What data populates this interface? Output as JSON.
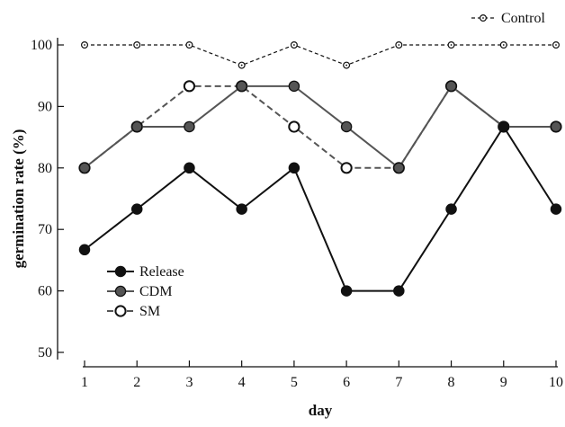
{
  "chart_data": {
    "type": "line",
    "title": "",
    "xlabel": "day",
    "ylabel": "germination rate (%)",
    "x": [
      1,
      2,
      3,
      4,
      5,
      6,
      7,
      8,
      9,
      10
    ],
    "xlim": [
      1,
      10
    ],
    "ylim": [
      50,
      100
    ],
    "yticks": [
      50,
      60,
      70,
      80,
      90,
      100
    ],
    "grid": false,
    "series": [
      {
        "name": "Control",
        "values": [
          100,
          100,
          100,
          96.7,
          100,
          96.7,
          100,
          100,
          100,
          100
        ],
        "color": "#111111",
        "marker": "open-small",
        "line": "dashed"
      },
      {
        "name": "Release",
        "values": [
          66.7,
          73.3,
          80,
          73.3,
          80,
          60,
          60,
          73.3,
          86.7,
          73.3
        ],
        "color": "#111111",
        "marker": "filled",
        "line": "solid"
      },
      {
        "name": "CDM",
        "values": [
          80,
          86.7,
          86.7,
          93.3,
          93.3,
          86.7,
          80,
          93.3,
          86.7,
          86.7
        ],
        "color": "#555555",
        "marker": "filled",
        "line": "solid"
      },
      {
        "name": "SM",
        "values": [
          80,
          86.7,
          93.3,
          93.3,
          86.7,
          80,
          80,
          93.3,
          86.7,
          86.7
        ],
        "color": "#555555",
        "marker": "open",
        "line": "dashed"
      }
    ],
    "legend": {
      "placement": "lower-left",
      "entries": [
        "Release",
        "CDM",
        "SM"
      ]
    },
    "legend_secondary": {
      "placement": "top-right",
      "entries": [
        "Control"
      ]
    }
  }
}
